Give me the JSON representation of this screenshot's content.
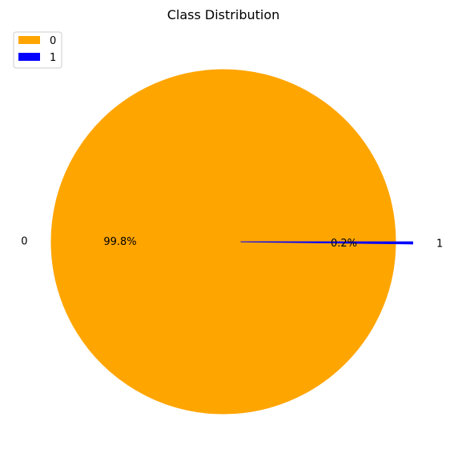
{
  "chart_data": {
    "type": "pie",
    "title": "Class Distribution",
    "categories": [
      "0",
      "1"
    ],
    "values": [
      99.8,
      0.2
    ],
    "percent_labels": [
      "99.8%",
      "0.2%"
    ],
    "colors": [
      "#ffa500",
      "#0000ff"
    ],
    "explode": [
      0,
      0.1
    ],
    "legend": {
      "placement": "top-left",
      "entries": [
        "0",
        "1"
      ]
    }
  }
}
